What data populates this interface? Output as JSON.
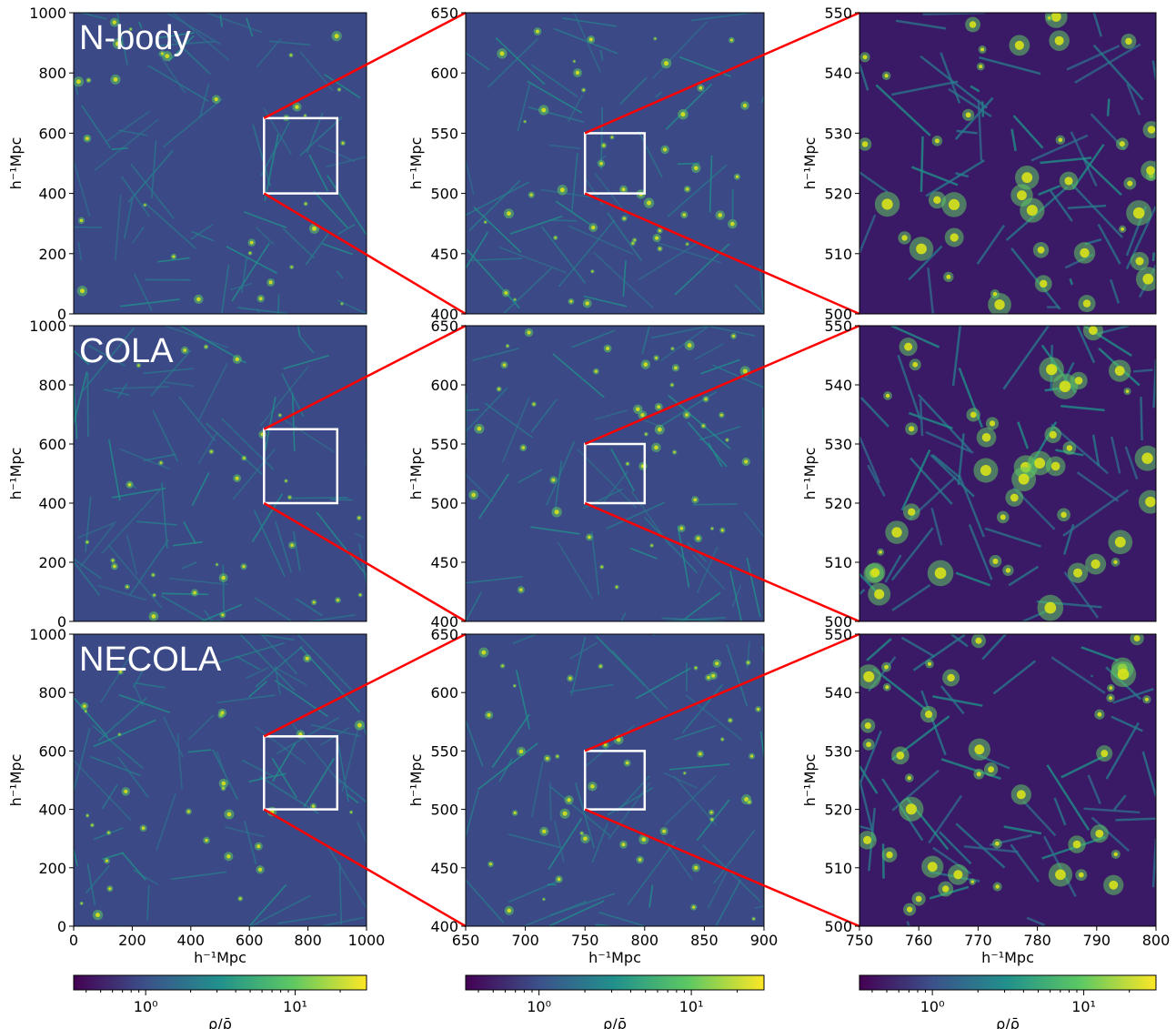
{
  "chart_data": [
    {
      "type": "heatmap",
      "title": "N-body",
      "xlim": [
        0,
        1000
      ],
      "ylim": [
        0,
        1000
      ],
      "ylabel": "h⁻¹Mpc",
      "xlabel": "",
      "yticks": [
        "0",
        "200",
        "400",
        "600",
        "800",
        "1000"
      ],
      "xticks": [],
      "inset": {
        "x": [
          650,
          900
        ],
        "y": [
          400,
          650
        ]
      }
    },
    {
      "type": "heatmap",
      "title": "",
      "xlim": [
        650,
        900
      ],
      "ylim": [
        400,
        650
      ],
      "ylabel": "h⁻¹Mpc",
      "xlabel": "",
      "yticks": [
        "400",
        "450",
        "500",
        "550",
        "600",
        "650"
      ],
      "xticks": [],
      "inset": {
        "x": [
          750,
          800
        ],
        "y": [
          500,
          550
        ]
      }
    },
    {
      "type": "heatmap",
      "title": "",
      "xlim": [
        750,
        800
      ],
      "ylim": [
        500,
        550
      ],
      "ylabel": "h⁻¹Mpc",
      "xlabel": "",
      "yticks": [
        "500",
        "510",
        "520",
        "530",
        "540",
        "550"
      ],
      "xticks": []
    },
    {
      "type": "heatmap",
      "title": "COLA",
      "xlim": [
        0,
        1000
      ],
      "ylim": [
        0,
        1000
      ],
      "ylabel": "h⁻¹Mpc",
      "xlabel": "",
      "yticks": [
        "0",
        "200",
        "400",
        "600",
        "800",
        "1000"
      ],
      "xticks": [],
      "inset": {
        "x": [
          650,
          900
        ],
        "y": [
          400,
          650
        ]
      }
    },
    {
      "type": "heatmap",
      "title": "",
      "xlim": [
        650,
        900
      ],
      "ylim": [
        400,
        650
      ],
      "ylabel": "h⁻¹Mpc",
      "xlabel": "",
      "yticks": [
        "400",
        "450",
        "500",
        "550",
        "600",
        "650"
      ],
      "xticks": [],
      "inset": {
        "x": [
          750,
          800
        ],
        "y": [
          500,
          550
        ]
      }
    },
    {
      "type": "heatmap",
      "title": "",
      "xlim": [
        750,
        800
      ],
      "ylim": [
        500,
        550
      ],
      "ylabel": "h⁻¹Mpc",
      "xlabel": "",
      "yticks": [
        "500",
        "510",
        "520",
        "530",
        "540",
        "550"
      ],
      "xticks": []
    },
    {
      "type": "heatmap",
      "title": "NECOLA",
      "xlim": [
        0,
        1000
      ],
      "ylim": [
        0,
        1000
      ],
      "ylabel": "h⁻¹Mpc",
      "xlabel": "h⁻¹Mpc",
      "yticks": [
        "0",
        "200",
        "400",
        "600",
        "800",
        "1000"
      ],
      "xticks": [
        "0",
        "200",
        "400",
        "600",
        "800",
        "1000"
      ],
      "inset": {
        "x": [
          650,
          900
        ],
        "y": [
          400,
          650
        ]
      }
    },
    {
      "type": "heatmap",
      "title": "",
      "xlim": [
        650,
        900
      ],
      "ylim": [
        400,
        650
      ],
      "ylabel": "h⁻¹Mpc",
      "xlabel": "h⁻¹Mpc",
      "yticks": [
        "400",
        "450",
        "500",
        "550",
        "600",
        "650"
      ],
      "xticks": [
        "650",
        "700",
        "750",
        "800",
        "850",
        "900"
      ],
      "inset": {
        "x": [
          750,
          800
        ],
        "y": [
          500,
          550
        ]
      }
    },
    {
      "type": "heatmap",
      "title": "",
      "xlim": [
        750,
        800
      ],
      "ylim": [
        500,
        550
      ],
      "ylabel": "h⁻¹Mpc",
      "xlabel": "h⁻¹Mpc",
      "yticks": [
        "500",
        "510",
        "520",
        "530",
        "540",
        "550"
      ],
      "xticks": [
        "750",
        "760",
        "770",
        "780",
        "790",
        "800"
      ]
    }
  ],
  "colorbars": [
    {
      "label": "ρ/ρ̄",
      "scale": "log",
      "tick_labels": [
        "10⁰",
        "10¹"
      ],
      "colormap": "viridis"
    },
    {
      "label": "ρ/ρ̄",
      "scale": "log",
      "tick_labels": [
        "10⁰",
        "10¹"
      ],
      "colormap": "viridis"
    },
    {
      "label": "ρ/ρ̄",
      "scale": "log",
      "tick_labels": [
        "10⁰",
        "10¹"
      ],
      "colormap": "viridis"
    }
  ],
  "colors": {
    "zoom_box": "#ffffff",
    "connector": "#ff0000",
    "low": "#440154",
    "mid": "#21918c",
    "high": "#fde725"
  }
}
